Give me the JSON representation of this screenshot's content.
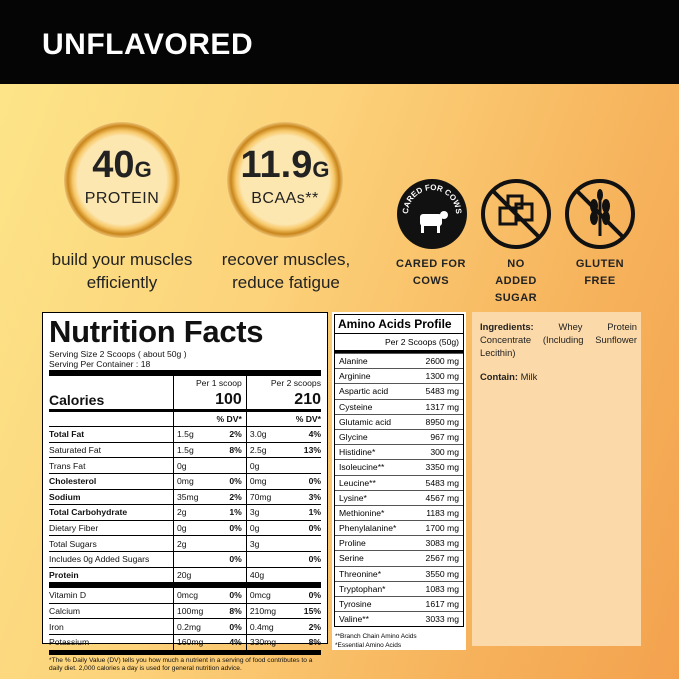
{
  "header": {
    "title": "UNFLAVORED"
  },
  "badges": [
    {
      "amount": "40",
      "unit": "G",
      "label": "PROTEIN",
      "caption": "build your muscles efficiently"
    },
    {
      "amount": "11.9",
      "unit": "G",
      "label": "BCAAs**",
      "caption": "recover muscles, reduce fatigue"
    }
  ],
  "icons": [
    {
      "badge_text": "CARED FOR COWS",
      "label": "CARED FOR COWS"
    },
    {
      "label": "NO ADDED SUGAR"
    },
    {
      "label": "GLUTEN FREE"
    }
  ],
  "nutrition": {
    "title": "Nutrition Facts",
    "serving_size": "Serving Size 2 Scoops ( about 50g )",
    "servings": "Serving Per Container : 18",
    "col1": "Per 1 scoop",
    "col2": "Per 2 scoops",
    "calories_label": "Calories",
    "calories1": "100",
    "calories2": "210",
    "dv_header": "% DV*",
    "rows": [
      {
        "name": "Total Fat",
        "a1": "1.5g",
        "d1": "2%",
        "a2": "3.0g",
        "d2": "4%",
        "style": "bold"
      },
      {
        "name": "Saturated Fat",
        "a1": "1.5g",
        "d1": "8%",
        "a2": "2.5g",
        "d2": "13%",
        "style": "sub"
      },
      {
        "name": "Trans Fat",
        "a1": "0g",
        "a2": "0g",
        "style": "sub"
      },
      {
        "name": "Cholesterol",
        "a1": "0mg",
        "d1": "0%",
        "a2": "0mg",
        "d2": "0%",
        "style": "bold"
      },
      {
        "name": "Sodium",
        "a1": "35mg",
        "d1": "2%",
        "a2": "70mg",
        "d2": "3%",
        "style": "bold"
      },
      {
        "name": "Total Carbohydrate",
        "a1": "2g",
        "d1": "1%",
        "a2": "3g",
        "d2": "1%",
        "style": "bold"
      },
      {
        "name": "Dietary Fiber",
        "a1": "0g",
        "d1": "0%",
        "a2": "0g",
        "d2": "0%",
        "style": "sub"
      },
      {
        "name": "Total Sugars",
        "a1": "2g",
        "a2": "3g",
        "style": "sub"
      },
      {
        "name": "Includes 0g Added Sugars",
        "d1": "0%",
        "d2": "0%",
        "style": "subsub"
      },
      {
        "name": "Protein",
        "a1": "20g",
        "a2": "40g",
        "style": "bold"
      },
      {
        "name": "Vitamin D",
        "a1": "0mcg",
        "d1": "0%",
        "a2": "0mcg",
        "d2": "0%",
        "style": "plain"
      },
      {
        "name": "Calcium",
        "a1": "100mg",
        "d1": "8%",
        "a2": "210mg",
        "d2": "15%",
        "style": "plain"
      },
      {
        "name": "Iron",
        "a1": "0.2mg",
        "d1": "0%",
        "a2": "0.4mg",
        "d2": "2%",
        "style": "plain"
      },
      {
        "name": "Potassium",
        "a1": "160mg",
        "d1": "4%",
        "a2": "330mg",
        "d2": "8%",
        "style": "plain"
      }
    ],
    "footnote": "*The % Daily Value (DV) tells you how much a nutrient in a serving of food contributes to a daily diet. 2,000 calories a day is used for general nutrition advice."
  },
  "amino": {
    "title": "Amino Acids Profile",
    "subtitle": "Per 2 Scoops (50g)",
    "rows": [
      [
        "Alanine",
        "2600 mg"
      ],
      [
        "Arginine",
        "1300 mg"
      ],
      [
        "Aspartic acid",
        "5483 mg"
      ],
      [
        "Cysteine",
        "1317 mg"
      ],
      [
        "Glutamic acid",
        "8950 mg"
      ],
      [
        "Glycine",
        "967 mg"
      ],
      [
        "Histidine*",
        "300 mg"
      ],
      [
        "Isoleucine**",
        "3350 mg"
      ],
      [
        "Leucine**",
        "5483 mg"
      ],
      [
        "Lysine*",
        "4567 mg"
      ],
      [
        "Methionine*",
        "1183 mg"
      ],
      [
        "Phenylalanine*",
        "1700 mg"
      ],
      [
        "Proline",
        "3083 mg"
      ],
      [
        "Serine",
        "2567 mg"
      ],
      [
        "Threonine*",
        "3550 mg"
      ],
      [
        "Tryptophan*",
        "1083 mg"
      ],
      [
        "Tyrosine",
        "1617 mg"
      ],
      [
        "Valine**",
        "3033 mg"
      ]
    ],
    "notes": [
      "**Branch Chain Amino Acids",
      "*Essential Amino Acids"
    ]
  },
  "ingredients": {
    "label": "Ingredients:",
    "text": "Whey Protein Concentrate (Including Sunflower Lecithin)",
    "contains_label": "Contain:",
    "contains": "Milk"
  }
}
